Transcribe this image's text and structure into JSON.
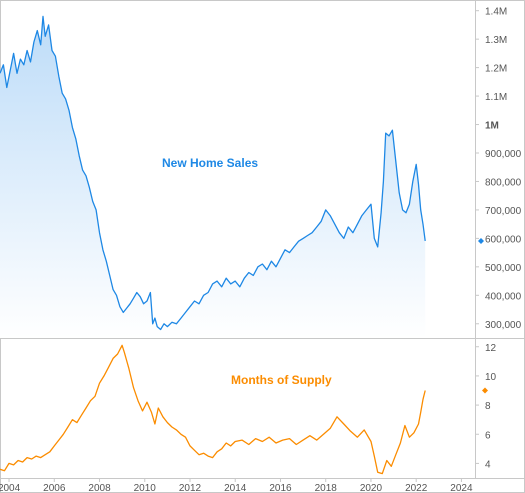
{
  "chart_data": [
    {
      "type": "area",
      "label": "New Home Sales",
      "ylim": [
        250000,
        1420000
      ],
      "xlim": [
        2003.6,
        2024.6
      ],
      "ytick_labels": [
        "1.4M",
        "1.3M",
        "1.2M",
        "1.1M",
        "1M",
        "900,000",
        "800,000",
        "700,000",
        "600,000",
        "500,000",
        "400,000",
        "300,000"
      ],
      "ytick_values": [
        1400000,
        1300000,
        1200000,
        1100000,
        1000000,
        900000,
        800000,
        700000,
        600000,
        500000,
        400000,
        300000
      ],
      "bold_tick": "1M",
      "last_value": 591000,
      "color": "#1e88e5",
      "fill_top": "#bddcf8",
      "fill_bottom": "#ffffff",
      "x": [
        2003.6,
        2003.75,
        2003.9,
        2004.05,
        2004.2,
        2004.35,
        2004.5,
        2004.65,
        2004.8,
        2004.95,
        2005.1,
        2005.25,
        2005.4,
        2005.5,
        2005.6,
        2005.75,
        2005.9,
        2006.05,
        2006.2,
        2006.35,
        2006.5,
        2006.65,
        2006.8,
        2006.95,
        2007.1,
        2007.25,
        2007.4,
        2007.55,
        2007.7,
        2007.85,
        2008.0,
        2008.15,
        2008.3,
        2008.45,
        2008.6,
        2008.75,
        2008.9,
        2009.05,
        2009.2,
        2009.35,
        2009.5,
        2009.65,
        2009.8,
        2009.95,
        2010.1,
        2010.25,
        2010.35,
        2010.45,
        2010.55,
        2010.7,
        2010.85,
        2011.0,
        2011.2,
        2011.4,
        2011.6,
        2011.8,
        2012.0,
        2012.2,
        2012.4,
        2012.6,
        2012.8,
        2013.0,
        2013.2,
        2013.4,
        2013.6,
        2013.8,
        2014.0,
        2014.2,
        2014.4,
        2014.6,
        2014.8,
        2015.0,
        2015.2,
        2015.4,
        2015.6,
        2015.8,
        2016.0,
        2016.2,
        2016.4,
        2016.6,
        2016.8,
        2017.0,
        2017.2,
        2017.4,
        2017.6,
        2017.8,
        2018.0,
        2018.2,
        2018.4,
        2018.6,
        2018.8,
        2019.0,
        2019.2,
        2019.4,
        2019.6,
        2019.8,
        2020.0,
        2020.15,
        2020.3,
        2020.45,
        2020.55,
        2020.65,
        2020.8,
        2020.95,
        2021.1,
        2021.25,
        2021.4,
        2021.55,
        2021.7,
        2021.85,
        2022.0,
        2022.1,
        2022.2,
        2022.3,
        2022.4
      ],
      "y": [
        1180000,
        1210000,
        1130000,
        1190000,
        1250000,
        1180000,
        1230000,
        1210000,
        1260000,
        1220000,
        1290000,
        1330000,
        1280000,
        1380000,
        1310000,
        1350000,
        1260000,
        1240000,
        1170000,
        1110000,
        1090000,
        1050000,
        990000,
        950000,
        890000,
        840000,
        820000,
        780000,
        730000,
        700000,
        620000,
        560000,
        520000,
        470000,
        420000,
        400000,
        360000,
        340000,
        355000,
        370000,
        390000,
        410000,
        395000,
        370000,
        380000,
        410000,
        300000,
        320000,
        290000,
        280000,
        300000,
        290000,
        305000,
        300000,
        320000,
        340000,
        360000,
        380000,
        370000,
        400000,
        410000,
        440000,
        450000,
        430000,
        460000,
        440000,
        450000,
        430000,
        460000,
        480000,
        470000,
        500000,
        510000,
        490000,
        520000,
        500000,
        530000,
        560000,
        550000,
        570000,
        590000,
        600000,
        610000,
        620000,
        640000,
        660000,
        700000,
        680000,
        650000,
        620000,
        600000,
        640000,
        620000,
        650000,
        680000,
        700000,
        720000,
        600000,
        570000,
        690000,
        800000,
        970000,
        960000,
        980000,
        870000,
        760000,
        700000,
        690000,
        720000,
        800000,
        860000,
        790000,
        700000,
        650000,
        591000
      ]
    },
    {
      "type": "line",
      "label": "Months of Supply",
      "ylim": [
        3,
        12.6
      ],
      "xlim": [
        2003.6,
        2024.6
      ],
      "ytick_labels": [
        "12",
        "10",
        "8",
        "6",
        "4"
      ],
      "ytick_values": [
        12,
        10,
        8,
        6,
        4
      ],
      "last_value": 9,
      "color": "#fb8c00",
      "x": [
        2003.6,
        2003.8,
        2004.0,
        2004.2,
        2004.4,
        2004.6,
        2004.8,
        2005.0,
        2005.2,
        2005.4,
        2005.6,
        2005.8,
        2006.0,
        2006.2,
        2006.4,
        2006.6,
        2006.8,
        2007.0,
        2007.2,
        2007.4,
        2007.6,
        2007.8,
        2008.0,
        2008.2,
        2008.4,
        2008.6,
        2008.8,
        2009.0,
        2009.1,
        2009.3,
        2009.5,
        2009.7,
        2009.9,
        2010.1,
        2010.3,
        2010.45,
        2010.6,
        2010.8,
        2011.0,
        2011.2,
        2011.4,
        2011.6,
        2011.8,
        2012.0,
        2012.2,
        2012.4,
        2012.6,
        2012.8,
        2013.0,
        2013.2,
        2013.4,
        2013.6,
        2013.8,
        2014.0,
        2014.3,
        2014.6,
        2014.9,
        2015.2,
        2015.5,
        2015.8,
        2016.1,
        2016.4,
        2016.7,
        2017.0,
        2017.3,
        2017.6,
        2017.9,
        2018.2,
        2018.5,
        2018.8,
        2019.1,
        2019.4,
        2019.7,
        2020.0,
        2020.15,
        2020.3,
        2020.5,
        2020.7,
        2020.9,
        2021.1,
        2021.3,
        2021.5,
        2021.7,
        2021.9,
        2022.1,
        2022.2,
        2022.3,
        2022.4
      ],
      "y": [
        3.6,
        3.5,
        4.0,
        3.9,
        4.2,
        4.1,
        4.4,
        4.3,
        4.5,
        4.4,
        4.6,
        4.8,
        5.2,
        5.6,
        6.0,
        6.5,
        7.0,
        6.8,
        7.3,
        7.8,
        8.3,
        8.6,
        9.5,
        10.0,
        10.6,
        11.2,
        11.5,
        12.1,
        11.6,
        10.5,
        9.2,
        8.3,
        7.6,
        8.2,
        7.5,
        6.7,
        7.8,
        7.2,
        6.8,
        6.5,
        6.3,
        6.0,
        5.8,
        5.2,
        4.9,
        4.6,
        4.7,
        4.5,
        4.4,
        4.8,
        5.0,
        5.4,
        5.2,
        5.5,
        5.6,
        5.3,
        5.7,
        5.5,
        5.8,
        5.4,
        5.6,
        5.7,
        5.3,
        5.6,
        5.9,
        5.6,
        6.0,
        6.4,
        7.2,
        6.7,
        6.2,
        5.8,
        6.3,
        5.5,
        4.5,
        3.4,
        3.3,
        4.2,
        3.8,
        4.6,
        5.4,
        6.6,
        5.8,
        6.1,
        6.7,
        7.5,
        8.4,
        9.0
      ]
    }
  ],
  "x_axis": {
    "tick_labels": [
      "2004",
      "2006",
      "2008",
      "2010",
      "2012",
      "2014",
      "2016",
      "2018",
      "2020",
      "2022",
      "2024"
    ],
    "tick_values": [
      2004,
      2006,
      2008,
      2010,
      2012,
      2014,
      2016,
      2018,
      2020,
      2022,
      2024
    ]
  },
  "colors": {
    "axis": "#c8c8c8",
    "tick_text": "#555555"
  }
}
